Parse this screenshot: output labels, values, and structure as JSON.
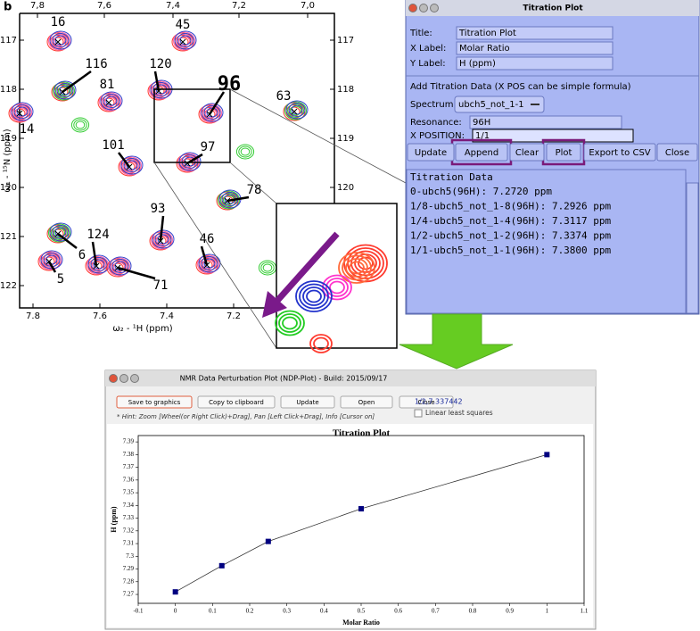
{
  "figure_label": "b",
  "spectrum": {
    "top_ticks": [
      "7,8",
      "7,6",
      "7,4",
      "7,2",
      "7,0"
    ],
    "bottom_ticks": [
      "7.8",
      "7.6",
      "7.4",
      "7.2"
    ],
    "left_ticks": [
      "117",
      "118",
      "119",
      "120",
      "121",
      "122"
    ],
    "right_ticks": [
      "117",
      "118",
      "119",
      "120"
    ],
    "x_label": "ω₂ - ¹H (ppm)",
    "y_label": "ω₁ - ¹⁵N (ppm)",
    "peaks": [
      "16",
      "45",
      "116",
      "120",
      "96",
      "81",
      "63",
      "14",
      "101",
      "97",
      "78",
      "93",
      "124",
      "46",
      "6",
      "5",
      "71"
    ]
  },
  "titration_window": {
    "title": "Titration Plot",
    "fields": [
      {
        "label": "Title:",
        "value": "Titration Plot"
      },
      {
        "label": "X Label:",
        "value": "Molar Ratio"
      },
      {
        "label": "Y Label:",
        "value": "H (ppm)"
      }
    ],
    "section": "Add Titration Data (X POS can be simple formula)",
    "spectrum_label": "Spectrum:",
    "spectrum_value": "ubch5_not_1-1",
    "resonance_label": "Resonance:",
    "resonance_value": "96H",
    "xpos_label": "X POSITION:",
    "xpos_value": "1/1",
    "buttons": [
      "Update",
      "Append",
      "Clear",
      "Plot",
      "Export to CSV",
      "Close"
    ],
    "data_header": "Titration Data",
    "data_lines": [
      "0-ubch5(96H): 7.2720 ppm",
      "1/8-ubch5_not_1-8(96H): 7.2926 ppm",
      "1/4-ubch5_not_1-4(96H): 7.3117 ppm",
      "1/2-ubch5_not_1-2(96H): 7.3374 ppm",
      "1/1-ubch5_not_1-1(96H): 7.3800 ppm"
    ]
  },
  "ndp_window": {
    "title": "NMR Data Perturbation Plot (NDP-Plot) - Build: 2015/09/17",
    "buttons": [
      "Save to graphics",
      "Copy to clipboard",
      "Update",
      "Open",
      "Close"
    ],
    "cursor_info": "1/2,7.337442",
    "checkbox": "Linear least squares",
    "hint": "* Hint: Zoom [Wheel(or Right Click)+Drag], Pan [Left Click+Drag], Info [Cursor on]"
  },
  "chart_data": {
    "type": "line",
    "title": "Titration Plot",
    "x_label": "Molar Ratio",
    "y_label": "H (ppm)",
    "x": [
      0,
      0.125,
      0.25,
      0.5,
      1
    ],
    "series": [
      {
        "name": "96H",
        "color": "#000080",
        "values": [
          7.272,
          7.2926,
          7.3117,
          7.3374,
          7.38
        ]
      }
    ],
    "xlim": [
      -0.1,
      1.1
    ],
    "xticks": [
      -0.1,
      0,
      0.1,
      0.2,
      0.3,
      0.4,
      0.5,
      0.6,
      0.7,
      0.8,
      0.9,
      1,
      1.1
    ],
    "ylim": [
      7.263,
      7.395
    ],
    "yticks": [
      7.27,
      7.28,
      7.29,
      7.3,
      7.31,
      7.32,
      7.33,
      7.34,
      7.35,
      7.36,
      7.37,
      7.38,
      7.39
    ]
  }
}
